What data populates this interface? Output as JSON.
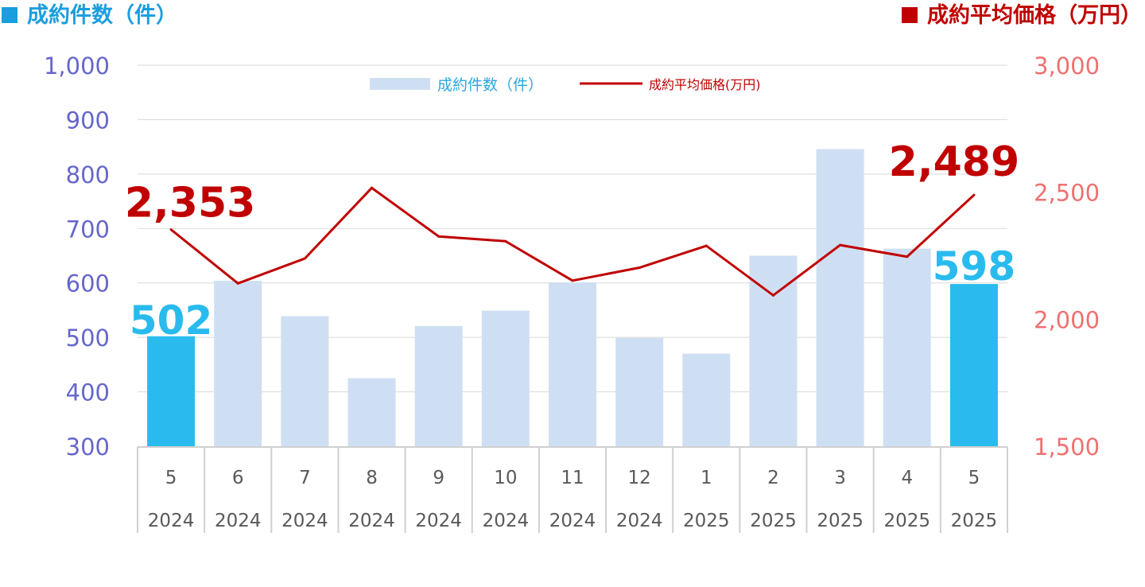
{
  "header": {
    "left_label": "成約件数（件）",
    "right_label": "成約平均価格（万円）"
  },
  "chart_data": {
    "type": "bar",
    "categories": [
      "5",
      "6",
      "7",
      "8",
      "9",
      "10",
      "11",
      "12",
      "1",
      "2",
      "3",
      "4",
      "5"
    ],
    "category_years": [
      "2024",
      "2024",
      "2024",
      "2024",
      "2024",
      "2024",
      "2024",
      "2024",
      "2025",
      "2025",
      "2025",
      "2025",
      "2025"
    ],
    "series": [
      {
        "name": "成約件数（件）",
        "type": "bar",
        "axis": "left",
        "values": [
          502,
          604,
          539,
          425,
          521,
          549,
          601,
          499,
          470,
          650,
          846,
          663,
          598
        ],
        "highlight_indices": [
          0,
          12
        ],
        "color": "#cfdff3",
        "highlight_color": "#29bbee"
      },
      {
        "name": "成約平均価格(万円)",
        "type": "line",
        "axis": "right",
        "values": [
          2353,
          2141,
          2239,
          2517,
          2326,
          2307,
          2152,
          2203,
          2289,
          2094,
          2292,
          2246,
          2489
        ],
        "color": "#c00000"
      }
    ],
    "left_axis": {
      "ylim": [
        300,
        1000
      ],
      "ticks": [
        "300",
        "400",
        "500",
        "600",
        "700",
        "800",
        "900",
        "1,000"
      ],
      "color": "#6666cc"
    },
    "right_axis": {
      "ylim": [
        1500,
        3000
      ],
      "ticks": [
        "1,500",
        "2,000",
        "2,500",
        "3,000"
      ],
      "color": "#f07070"
    },
    "annotations": [
      {
        "text": "502",
        "series": 0,
        "index": 0,
        "color": "#29bbee"
      },
      {
        "text": "598",
        "series": 0,
        "index": 12,
        "color": "#29bbee"
      },
      {
        "text": "2,353",
        "series": 1,
        "index": 0,
        "color": "#c00000"
      },
      {
        "text": "2,489",
        "series": 1,
        "index": 12,
        "color": "#c00000"
      }
    ],
    "grid": true,
    "legend_position": "top-center"
  }
}
